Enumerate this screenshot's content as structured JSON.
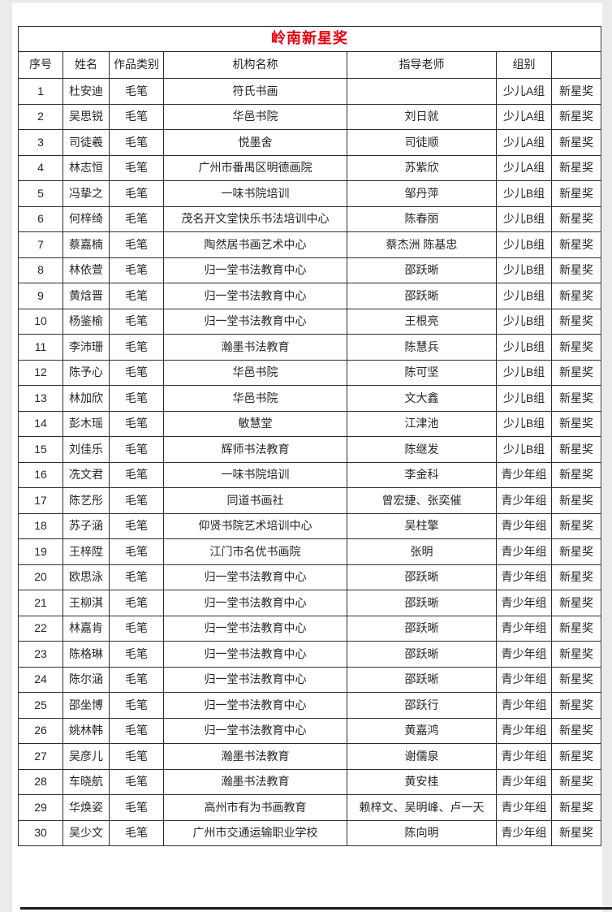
{
  "page": {
    "background_color": "#ebebeb",
    "title_color": "#e8000e",
    "text_color": "#262626"
  },
  "table": {
    "title": "岭南新星奖",
    "headers": [
      "序号",
      "姓名",
      "作品类别",
      "机构名称",
      "指导老师",
      "组别",
      ""
    ],
    "rows": [
      [
        "1",
        "杜安迪",
        "毛笔",
        "符氏书画",
        "",
        "少儿A组",
        "新星奖"
      ],
      [
        "2",
        "吴思锐",
        "毛笔",
        "华邑书院",
        "刘日就",
        "少儿A组",
        "新星奖"
      ],
      [
        "3",
        "司徒羲",
        "毛笔",
        "悦墨舍",
        "司徒顺",
        "少儿A组",
        "新星奖"
      ],
      [
        "4",
        "林志恒",
        "毛笔",
        "广州市番禺区明德画院",
        "苏紫欣",
        "少儿A组",
        "新星奖"
      ],
      [
        "5",
        "冯挚之",
        "毛笔",
        "一味书院培训",
        "邹丹萍",
        "少儿B组",
        "新星奖"
      ],
      [
        "6",
        "何梓绮",
        "毛笔",
        "茂名开文堂快乐书法培训中心",
        "陈春丽",
        "少儿B组",
        "新星奖"
      ],
      [
        "7",
        "蔡嘉楠",
        "毛笔",
        "陶然居书画艺术中心",
        "蔡杰洲 陈基忠",
        "少儿B组",
        "新星奖"
      ],
      [
        "8",
        "林依萱",
        "毛笔",
        "归一堂书法教育中心",
        "邵跃晰",
        "少儿B组",
        "新星奖"
      ],
      [
        "9",
        "黄焓晋",
        "毛笔",
        "归一堂书法教育中心",
        "邵跃晰",
        "少儿B组",
        "新星奖"
      ],
      [
        "10",
        "杨鉴榆",
        "毛笔",
        "归一堂书法教育中心",
        "王根亮",
        "少儿B组",
        "新星奖"
      ],
      [
        "11",
        "李沛珊",
        "毛笔",
        "瀚墨书法教育",
        "陈慧兵",
        "少儿B组",
        "新星奖"
      ],
      [
        "12",
        "陈予心",
        "毛笔",
        "华邑书院",
        "陈可坚",
        "少儿B组",
        "新星奖"
      ],
      [
        "13",
        "林加欣",
        "毛笔",
        "华邑书院",
        "文大鑫",
        "少儿B组",
        "新星奖"
      ],
      [
        "14",
        "彭木瑶",
        "毛笔",
        "敏慧堂",
        "江津池",
        "少儿B组",
        "新星奖"
      ],
      [
        "15",
        "刘佳乐",
        "毛笔",
        "辉师书法教育",
        "陈继发",
        "少儿B组",
        "新星奖"
      ],
      [
        "16",
        "冼文君",
        "毛笔",
        "一味书院培训",
        "李金科",
        "青少年组",
        "新星奖"
      ],
      [
        "17",
        "陈艺彤",
        "毛笔",
        "同道书画社",
        "曾宏捷、张奕催",
        "青少年组",
        "新星奖"
      ],
      [
        "18",
        "苏子涵",
        "毛笔",
        "仰贤书院艺术培训中心",
        "吴柱擎",
        "青少年组",
        "新星奖"
      ],
      [
        "19",
        "王梓陞",
        "毛笔",
        "江门市名优书画院",
        "张明",
        "青少年组",
        "新星奖"
      ],
      [
        "20",
        "欧思泳",
        "毛笔",
        "归一堂书法教育中心",
        "邵跃晰",
        "青少年组",
        "新星奖"
      ],
      [
        "21",
        "王柳淇",
        "毛笔",
        "归一堂书法教育中心",
        "邵跃晰",
        "青少年组",
        "新星奖"
      ],
      [
        "22",
        "林嘉肯",
        "毛笔",
        "归一堂书法教育中心",
        "邵跃晰",
        "青少年组",
        "新星奖"
      ],
      [
        "23",
        "陈格琳",
        "毛笔",
        "归一堂书法教育中心",
        "邵跃晰",
        "青少年组",
        "新星奖"
      ],
      [
        "24",
        "陈尔涵",
        "毛笔",
        "归一堂书法教育中心",
        "邵跃晰",
        "青少年组",
        "新星奖"
      ],
      [
        "25",
        "邵坐博",
        "毛笔",
        "归一堂书法教育中心",
        "邵跃行",
        "青少年组",
        "新星奖"
      ],
      [
        "26",
        "姚林韩",
        "毛笔",
        "归一堂书法教育中心",
        "黄嘉鸿",
        "青少年组",
        "新星奖"
      ],
      [
        "27",
        "吴彦儿",
        "毛笔",
        "瀚墨书法教育",
        "谢儒泉",
        "青少年组",
        "新星奖"
      ],
      [
        "28",
        "车晓航",
        "毛笔",
        "瀚墨书法教育",
        "黄安桂",
        "青少年组",
        "新星奖"
      ],
      [
        "29",
        "华焕姿",
        "毛笔",
        "高州市有为书画教育",
        "赖梓文、吴明峰、卢一天",
        "青少年组",
        "新星奖"
      ],
      [
        "30",
        "吴少文",
        "毛笔",
        "广州市交通运输职业学校",
        "陈向明",
        "青少年组",
        "新星奖"
      ]
    ],
    "column_names": [
      "serial",
      "name",
      "category",
      "institution",
      "instructor",
      "group",
      "award"
    ]
  }
}
